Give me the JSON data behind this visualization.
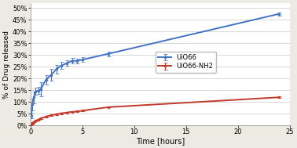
{
  "title": "",
  "xlabel": "Time [hours]",
  "ylabel": "% of Drug released",
  "xlim": [
    0,
    25
  ],
  "ylim": [
    0,
    0.52
  ],
  "yticks": [
    0.0,
    0.05,
    0.1,
    0.15,
    0.2,
    0.25,
    0.3,
    0.35,
    0.4,
    0.45,
    0.5
  ],
  "xticks": [
    0,
    5,
    10,
    15,
    20,
    25
  ],
  "uio66_x": [
    0.083,
    0.167,
    0.33,
    0.5,
    0.75,
    1.0,
    1.5,
    2.0,
    2.5,
    3.0,
    3.5,
    4.0,
    4.5,
    5.0,
    7.5,
    24.0
  ],
  "uio66_y": [
    0.04,
    0.09,
    0.12,
    0.145,
    0.148,
    0.155,
    0.195,
    0.215,
    0.24,
    0.255,
    0.265,
    0.275,
    0.275,
    0.28,
    0.305,
    0.475
  ],
  "uio66_err": [
    0.01,
    0.025,
    0.025,
    0.015,
    0.015,
    0.03,
    0.02,
    0.025,
    0.018,
    0.015,
    0.012,
    0.012,
    0.01,
    0.01,
    0.01,
    0.007
  ],
  "uio66nh2_x": [
    0.083,
    0.167,
    0.33,
    0.5,
    0.75,
    1.0,
    1.5,
    2.0,
    2.5,
    3.0,
    3.5,
    4.0,
    4.5,
    5.0,
    7.5,
    24.0
  ],
  "uio66nh2_y": [
    0.005,
    0.01,
    0.015,
    0.02,
    0.025,
    0.03,
    0.038,
    0.043,
    0.048,
    0.052,
    0.055,
    0.058,
    0.06,
    0.063,
    0.078,
    0.12
  ],
  "uio66nh2_err": [
    0.002,
    0.002,
    0.002,
    0.002,
    0.002,
    0.003,
    0.003,
    0.003,
    0.003,
    0.003,
    0.002,
    0.002,
    0.002,
    0.002,
    0.002,
    0.004
  ],
  "uio66_color": "#4472c4",
  "uio66nh2_color": "#c0392b",
  "bg_color": "#ede9e3",
  "plot_bg": "#ffffff",
  "legend_uio66": "UiO66",
  "legend_uio66nh2": "UiO66-NH2",
  "grid_color": "#c8c8c8",
  "spine_color": "#888888"
}
